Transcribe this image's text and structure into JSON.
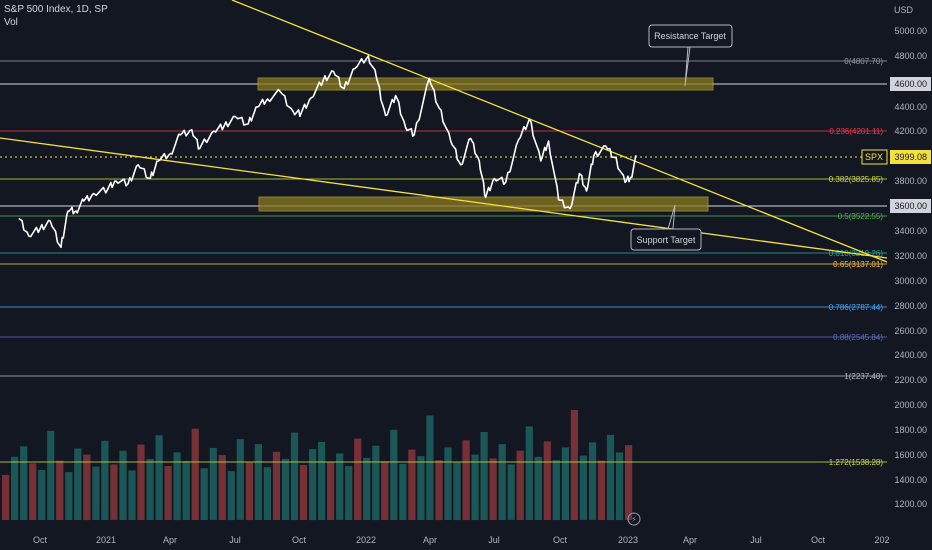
{
  "header": {
    "title": "S&P 500 Index, 1D, SP",
    "indicator": "Vol"
  },
  "currency": "USD",
  "price_label": {
    "symbol": "SPX",
    "value": "3999.08"
  },
  "chart_data": {
    "type": "line",
    "series": [
      {
        "x": [
          "2020-09-01",
          "2020-09-15",
          "2020-10-01",
          "2020-10-15",
          "2020-10-30",
          "2020-11-09",
          "2020-11-20",
          "2020-12-01",
          "2020-12-15",
          "2021-01-04",
          "2021-01-15",
          "2021-02-01",
          "2021-02-15",
          "2021-03-04",
          "2021-03-15",
          "2021-04-01",
          "2021-04-15",
          "2021-05-01",
          "2021-05-12",
          "2021-06-01",
          "2021-06-15",
          "2021-07-01",
          "2021-07-19",
          "2021-08-01",
          "2021-08-15",
          "2021-09-02",
          "2021-09-20",
          "2021-10-01",
          "2021-10-15",
          "2021-11-01",
          "2021-11-15",
          "2021-11-30",
          "2021-12-15",
          "2022-01-03",
          "2022-01-14",
          "2022-01-27",
          "2022-02-10",
          "2022-02-24",
          "2022-03-08",
          "2022-03-29",
          "2022-04-12",
          "2022-04-28",
          "2022-05-12",
          "2022-05-26",
          "2022-06-07",
          "2022-06-16",
          "2022-06-28",
          "2022-07-14",
          "2022-08-01",
          "2022-08-16",
          "2022-09-01",
          "2022-09-12",
          "2022-09-26",
          "2022-10-12",
          "2022-10-25",
          "2022-11-04",
          "2022-11-14",
          "2022-12-01",
          "2022-12-13",
          "2022-12-28",
          "2023-01-05",
          "2023-01-13"
        ],
        "values": [
          3500,
          3360,
          3420,
          3480,
          3270,
          3560,
          3560,
          3640,
          3700,
          3740,
          3800,
          3780,
          3930,
          3820,
          3960,
          4020,
          4170,
          4210,
          4060,
          4200,
          4240,
          4320,
          4260,
          4400,
          4470,
          4530,
          4360,
          4350,
          4480,
          4630,
          4690,
          4560,
          4710,
          4800,
          4650,
          4330,
          4500,
          4230,
          4170,
          4640,
          4390,
          4120,
          3930,
          4140,
          3960,
          3670,
          3820,
          3790,
          4130,
          4300,
          3960,
          4120,
          3650,
          3580,
          3860,
          3720,
          4000,
          4080,
          3990,
          3790,
          3830,
          3999
        ]
      }
    ],
    "volume": [
      820,
      1150,
      1340,
      1030,
      910,
      1620,
      1080,
      870,
      1300,
      1190,
      970,
      1440,
      1010,
      1260,
      900,
      1370,
      1110,
      1540,
      980,
      1230,
      1070,
      1660,
      940,
      1310,
      1180,
      890,
      1470,
      1050,
      1380,
      960,
      1240,
      1110,
      1590,
      1000,
      1290,
      1420,
      1060,
      1210,
      980,
      1480,
      1130,
      1350,
      1070,
      1640,
      1020,
      1280,
      1160,
      1900,
      1090,
      1320,
      1050,
      1450,
      1190,
      1600,
      1120,
      1380,
      1010,
      1260,
      1700,
      1150,
      1430,
      1090,
      1320,
      2000,
      1170,
      1410,
      1080,
      1550,
      1230,
      1360
    ]
  },
  "y_ticks": [
    "5000.00",
    "4800.00",
    "4400.00",
    "4200.00",
    "3800.00",
    "3400.00",
    "3200.00",
    "3000.00",
    "2800.00",
    "2600.00",
    "2400.00",
    "2200.00",
    "2000.00",
    "1800.00",
    "1600.00",
    "1400.00",
    "1200.00"
  ],
  "highlighted_ticks": [
    "4600.00",
    "3600.00"
  ],
  "x_ticks": [
    "Oct",
    "2021",
    "Apr",
    "Jul",
    "Oct",
    "2022",
    "Apr",
    "Jul",
    "Oct",
    "2023",
    "Apr",
    "Jul",
    "Oct",
    "202"
  ],
  "fib_levels": [
    {
      "label": "0(4807.70)",
      "color": "#9598a1"
    },
    {
      "label": "0.236(4201.11)",
      "color": "#f23645"
    },
    {
      "label": "0.382(3825.85)",
      "color": "#cddc39"
    },
    {
      "label": "0.5(3522.55)",
      "color": "#4caf50"
    },
    {
      "label": "0.618(3219.26)",
      "color": "#26a69a"
    },
    {
      "label": "0.65(3137.01)",
      "color": "#fbc02d"
    },
    {
      "label": "0.786(2787.44)",
      "color": "#42a5f5"
    },
    {
      "label": "0.88(2545.84)",
      "color": "#5c6bc0"
    },
    {
      "label": "1(2237.40)",
      "color": "#b2b5be"
    },
    {
      "label": "1.272(1538.28)",
      "color": "#cddc39"
    }
  ],
  "callouts": {
    "resistance": "Resistance Target",
    "support": "Support Target"
  },
  "colors": {
    "background": "#131722",
    "price_line": "#ffffff",
    "trendline": "#f5e13a",
    "zone": "#8a7a1e",
    "volume_up": "#26a69a",
    "volume_down": "#ef5350"
  }
}
